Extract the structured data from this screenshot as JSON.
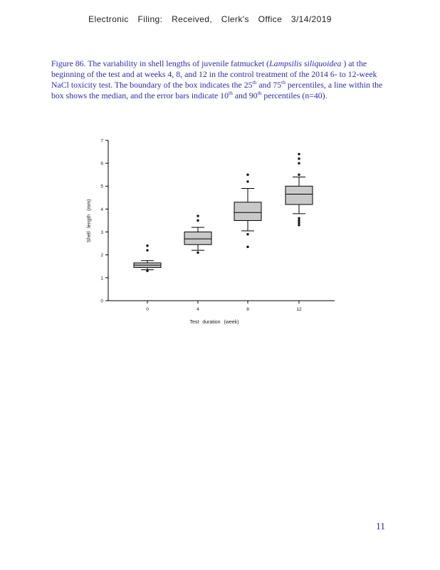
{
  "header": {
    "filing_line": "Electronic Filing: Received, Clerk's Office 3/14/2019"
  },
  "caption": {
    "part1": "Figure 86. The variability in shell lengths of juvenile fatmucket (",
    "species": "Lampsilis siliquoidea",
    "part2": " ) at the beginning of the test and at weeks 4, 8, and 12 in the control treatment of the 2014 6- to 12-week NaCl toxicity test. The boundary of the box indicates the 25",
    "sup": "th",
    "part3": " and 75",
    "part4": " percentiles, a line within the box shows the median, and the error bars indicate 10",
    "part5": " and 90",
    "part6": " percentiles (n=40)."
  },
  "page_number": "11",
  "chart_data": {
    "type": "boxplot",
    "title": "",
    "xlabel": "Test duration (week)",
    "ylabel": "Shell length (mm)",
    "categories": [
      "0",
      "4",
      "8",
      "12"
    ],
    "ylim": [
      0,
      7
    ],
    "yticks": [
      0,
      1,
      2,
      3,
      4,
      5,
      6,
      7
    ],
    "grid": false,
    "box_fill": "#c9c9c9",
    "box_stroke": "#000000",
    "outlier_color": "#111111",
    "series": [
      {
        "category": "0",
        "whisker_low": 1.35,
        "q1": 1.45,
        "median": 1.55,
        "q3": 1.65,
        "whisker_high": 1.75,
        "outliers": [
          1.3,
          2.2,
          2.4
        ]
      },
      {
        "category": "4",
        "whisker_low": 2.2,
        "q1": 2.45,
        "median": 2.7,
        "q3": 3.0,
        "whisker_high": 3.2,
        "outliers": [
          2.1,
          3.5,
          3.7
        ]
      },
      {
        "category": "8",
        "whisker_low": 3.05,
        "q1": 3.5,
        "median": 3.85,
        "q3": 4.3,
        "whisker_high": 4.9,
        "outliers": [
          2.35,
          2.9,
          5.2,
          5.5
        ]
      },
      {
        "category": "12",
        "whisker_low": 3.8,
        "q1": 4.2,
        "median": 4.65,
        "q3": 5.0,
        "whisker_high": 5.4,
        "outliers": [
          3.3,
          3.4,
          3.5,
          3.6,
          5.5,
          6.0,
          6.2,
          6.4
        ]
      }
    ],
    "n_per_group": 40
  }
}
